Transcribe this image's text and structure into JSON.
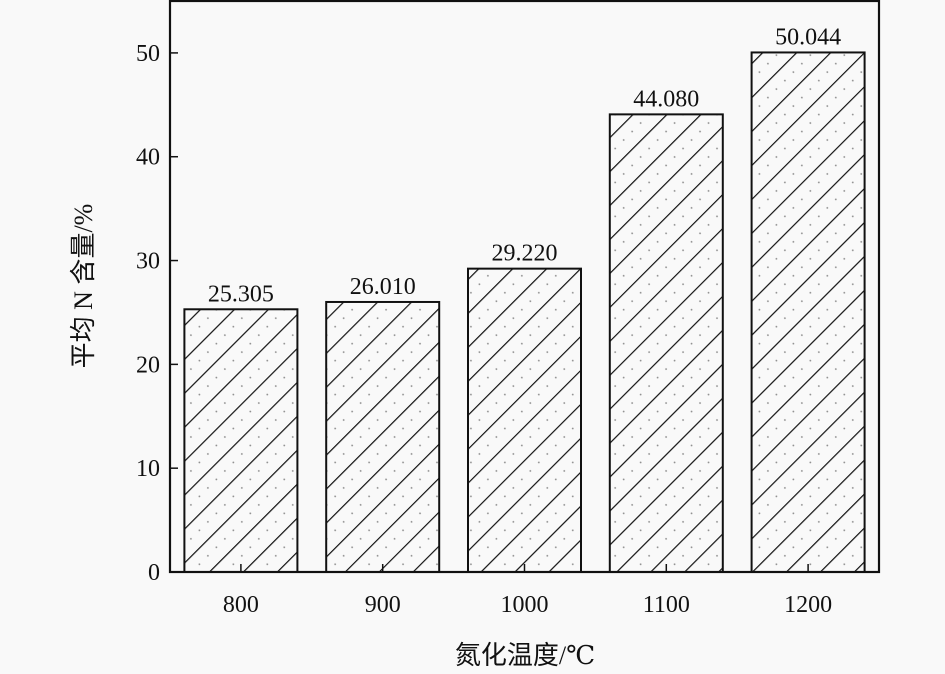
{
  "chart_data": {
    "type": "bar",
    "categories": [
      "800",
      "900",
      "1000",
      "1100",
      "1200"
    ],
    "values": [
      25.305,
      26.01,
      29.22,
      44.08,
      50.044
    ],
    "data_labels": [
      "25.305",
      "26.010",
      "29.220",
      "44.080",
      "50.044"
    ],
    "xlabel": "氮化温度/℃",
    "ylabel": "平均 N 含量/%",
    "ylim": [
      0,
      55
    ],
    "yticks": [
      0,
      10,
      20,
      30,
      40,
      50
    ],
    "grid": false,
    "bar_fill": "diagonal hatch with dots",
    "colors": {
      "bar_edge": "#111111",
      "background": "#f9f9f9"
    }
  }
}
